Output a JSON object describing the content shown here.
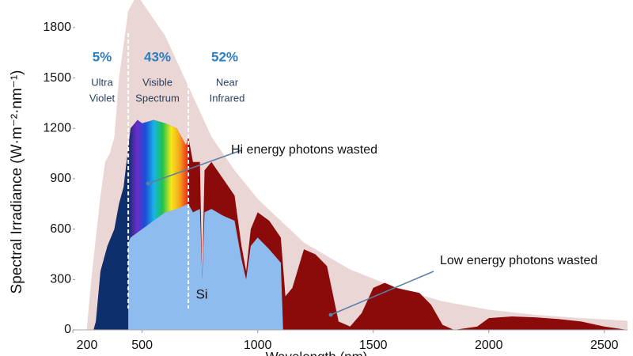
{
  "chart_data": {
    "type": "area",
    "ylabel": "Spectral Irradiance (W·m⁻²·nm⁻¹)",
    "xlabel": "Wavelength (nm)",
    "xlim": [
      200,
      2600
    ],
    "xticks": [
      200,
      500,
      1000,
      1500,
      2000,
      2500
    ],
    "ylim": [
      0,
      1950
    ],
    "yticks": [
      0,
      300,
      600,
      900,
      1200,
      1500,
      1800
    ],
    "boundaries": [
      440,
      700
    ],
    "band_colors": [
      "#0d2f6b",
      "#6a2cc8",
      "#1a4fd8",
      "#19b3e6",
      "#1fc24a",
      "#f4e81c",
      "#f7a21c",
      "#e8251b"
    ],
    "series": [
      {
        "color": "#ead6d4",
        "x": [
          260,
          280,
          300,
          320,
          340,
          360,
          380,
          400,
          420,
          440,
          460,
          480,
          500,
          550,
          600,
          700,
          800,
          900,
          1000,
          1200,
          1400,
          1600,
          1800,
          2000,
          2200,
          2400,
          2600
        ],
        "values": [
          0,
          300,
          550,
          800,
          1000,
          1050,
          1150,
          1500,
          1700,
          1900,
          1950,
          2000,
          1950,
          1850,
          1750,
          1450,
          1150,
          950,
          780,
          520,
          360,
          250,
          170,
          120,
          90,
          70,
          55
        ]
      },
      {
        "color": "#8b0b0b",
        "x": [
          290,
          300,
          320,
          350,
          380,
          400,
          420,
          450,
          480,
          500,
          550,
          600,
          650,
          690,
          700,
          720,
          750,
          760,
          770,
          800,
          850,
          900,
          930,
          950,
          970,
          1000,
          1050,
          1100,
          1120,
          1150,
          1200,
          1250,
          1300,
          1350,
          1400,
          1450,
          1500,
          1550,
          1600,
          1700,
          1750,
          1800,
          1850,
          1950,
          2000,
          2100,
          2200,
          2300,
          2400,
          2500,
          2600
        ],
        "values": [
          0,
          50,
          350,
          500,
          600,
          750,
          850,
          1200,
          1250,
          1230,
          1250,
          1230,
          1200,
          1100,
          1150,
          1000,
          1000,
          300,
          950,
          1000,
          900,
          800,
          500,
          350,
          600,
          700,
          650,
          550,
          200,
          250,
          480,
          450,
          380,
          50,
          20,
          100,
          250,
          280,
          250,
          220,
          150,
          30,
          0,
          20,
          70,
          80,
          75,
          65,
          50,
          20,
          0
        ]
      },
      {
        "color": "#8fbcef",
        "x": [
          440,
          450,
          500,
          550,
          600,
          650,
          700,
          720,
          750,
          760,
          770,
          800,
          850,
          900,
          930,
          950,
          970,
          1000,
          1050,
          1100,
          1110
        ],
        "values": [
          520,
          550,
          600,
          650,
          700,
          720,
          750,
          700,
          720,
          300,
          700,
          720,
          680,
          650,
          420,
          300,
          500,
          550,
          480,
          400,
          0
        ]
      }
    ],
    "annotations": {
      "uv_pct": "5%",
      "vis_pct": "43%",
      "ir_pct": "52%",
      "uv": [
        "Ultra",
        "Violet"
      ],
      "vis": [
        "Visible",
        "Spectrum"
      ],
      "ir": [
        "Near",
        "Infrared"
      ],
      "hi": "Hi energy photons wasted",
      "low": "Low energy photons wasted",
      "si": "Si"
    }
  }
}
